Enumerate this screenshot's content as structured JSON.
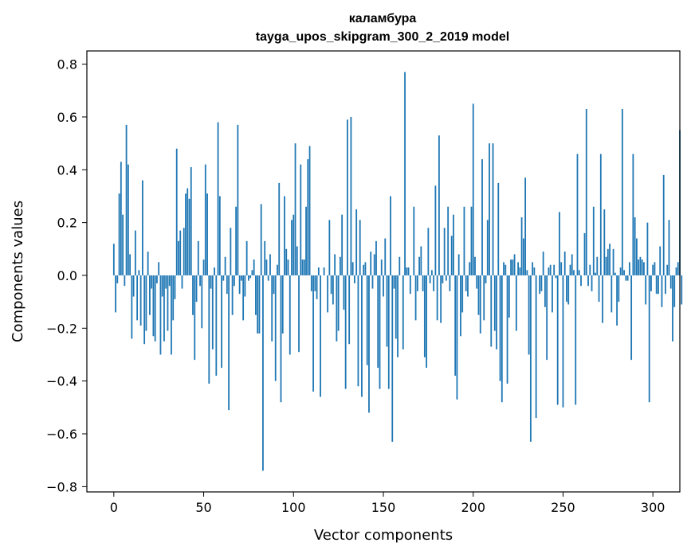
{
  "chart_data": {
    "type": "bar",
    "title": "каламбура",
    "subtitle": "tayga_upos_skipgram_300_2_2019 model",
    "xlabel": "Vector components",
    "ylabel": "Components values",
    "xlim": [
      -15,
      315
    ],
    "ylim": [
      -0.82,
      0.85
    ],
    "xticks": [
      0,
      50,
      100,
      150,
      200,
      250,
      300
    ],
    "yticks": [
      -0.8,
      -0.6,
      -0.4,
      -0.2,
      0.0,
      0.2,
      0.4,
      0.6,
      0.8
    ],
    "ytick_labels": [
      "−0.8",
      "−0.6",
      "−0.4",
      "−0.2",
      "0.0",
      "0.2",
      "0.4",
      "0.6",
      "0.8"
    ],
    "xtick_labels": [
      "0",
      "50",
      "100",
      "150",
      "200",
      "250",
      "300"
    ],
    "bar_color": "#1f77b4",
    "grid": false,
    "values": [
      0.12,
      -0.14,
      -0.03,
      0.31,
      0.43,
      0.23,
      -0.04,
      0.57,
      0.42,
      0.08,
      -0.24,
      -0.08,
      0.17,
      -0.17,
      0.02,
      -0.19,
      0.36,
      -0.26,
      -0.21,
      0.09,
      -0.15,
      -0.05,
      -0.23,
      -0.25,
      -0.03,
      0.05,
      -0.3,
      -0.08,
      -0.25,
      -0.05,
      -0.21,
      -0.04,
      -0.3,
      -0.17,
      -0.09,
      0.48,
      0.13,
      0.17,
      -0.05,
      0.18,
      0.31,
      0.33,
      0.29,
      0.41,
      -0.15,
      -0.32,
      -0.1,
      0.13,
      -0.04,
      -0.2,
      0.06,
      0.42,
      0.31,
      -0.41,
      -0.05,
      -0.28,
      0.03,
      -0.38,
      0.58,
      0.3,
      -0.35,
      -0.02,
      0.07,
      -0.07,
      -0.51,
      0.18,
      -0.15,
      -0.04,
      0.26,
      0.57,
      -0.07,
      -0.02,
      -0.17,
      -0.08,
      0.13,
      -0.02,
      -0.01,
      0.02,
      0.06,
      -0.15,
      -0.22,
      -0.22,
      0.27,
      -0.74,
      0.13,
      0.06,
      -0.02,
      0.08,
      -0.25,
      -0.07,
      -0.4,
      0.04,
      0.35,
      -0.48,
      -0.22,
      0.3,
      0.1,
      0.06,
      -0.3,
      0.21,
      0.23,
      0.5,
      0.11,
      -0.29,
      0.42,
      0.06,
      0.06,
      0.26,
      0.44,
      0.49,
      -0.06,
      -0.44,
      -0.06,
      -0.09,
      0.03,
      -0.46,
      0.0,
      0.03,
      0.0,
      -0.14,
      0.21,
      -0.07,
      -0.11,
      0.08,
      -0.25,
      -0.21,
      0.07,
      0.23,
      -0.13,
      -0.43,
      0.59,
      -0.26,
      0.6,
      0.05,
      -0.03,
      0.25,
      -0.42,
      0.21,
      -0.46,
      0.04,
      0.05,
      -0.34,
      -0.52,
      0.09,
      -0.05,
      0.08,
      0.13,
      -0.35,
      -0.43,
      0.06,
      -0.08,
      0.14,
      -0.27,
      -0.43,
      0.3,
      -0.63,
      -0.05,
      -0.24,
      -0.31,
      0.07,
      0.0,
      -0.28,
      0.77,
      0.03,
      0.03,
      -0.07,
      0.0,
      0.26,
      -0.17,
      -0.06,
      0.07,
      0.11,
      -0.06,
      -0.31,
      -0.35,
      0.18,
      -0.03,
      0.02,
      -0.06,
      0.34,
      -0.17,
      0.53,
      -0.18,
      -0.03,
      0.18,
      -0.02,
      0.26,
      -0.06,
      0.15,
      0.23,
      -0.38,
      -0.47,
      0.08,
      -0.23,
      -0.14,
      0.26,
      -0.06,
      -0.08,
      0.05,
      0.26,
      0.65,
      0.07,
      -0.05,
      -0.15,
      -0.22,
      0.44,
      -0.17,
      -0.03,
      0.21,
      0.5,
      -0.27,
      0.5,
      -0.21,
      -0.28,
      0.35,
      -0.4,
      -0.48,
      0.05,
      0.04,
      -0.41,
      -0.16,
      0.06,
      0.06,
      0.08,
      -0.21,
      0.05,
      0.03,
      0.22,
      0.14,
      0.37,
      0.02,
      -0.3,
      -0.63,
      0.05,
      0.03,
      -0.54,
      0.0,
      -0.07,
      -0.06,
      0.09,
      -0.12,
      -0.32,
      0.03,
      0.04,
      -0.14,
      0.04,
      -0.01,
      -0.49,
      0.24,
      0.05,
      -0.5,
      0.09,
      -0.1,
      -0.11,
      0.04,
      0.08,
      0.02,
      -0.49,
      0.46,
      0.02,
      -0.04,
      0.0,
      0.16,
      0.63,
      -0.04,
      0.04,
      -0.06,
      0.26,
      0.01,
      0.07,
      -0.1,
      0.46,
      -0.18,
      0.25,
      0.07,
      0.1,
      0.12,
      -0.14,
      0.1,
      0.01,
      -0.19,
      -0.1,
      0.03,
      0.63,
      0.02,
      -0.02,
      -0.02,
      0.05,
      -0.32,
      0.46,
      0.22,
      0.14,
      0.06,
      0.07,
      0.06,
      0.05,
      -0.11,
      0.2,
      -0.48,
      -0.06,
      0.04,
      0.05,
      -0.07,
      -0.07,
      0.11,
      -0.12,
      0.38,
      -0.07,
      0.04,
      0.21,
      -0.05,
      -0.25,
      -0.12,
      0.03,
      0.05,
      0.55,
      -0.11
    ]
  }
}
